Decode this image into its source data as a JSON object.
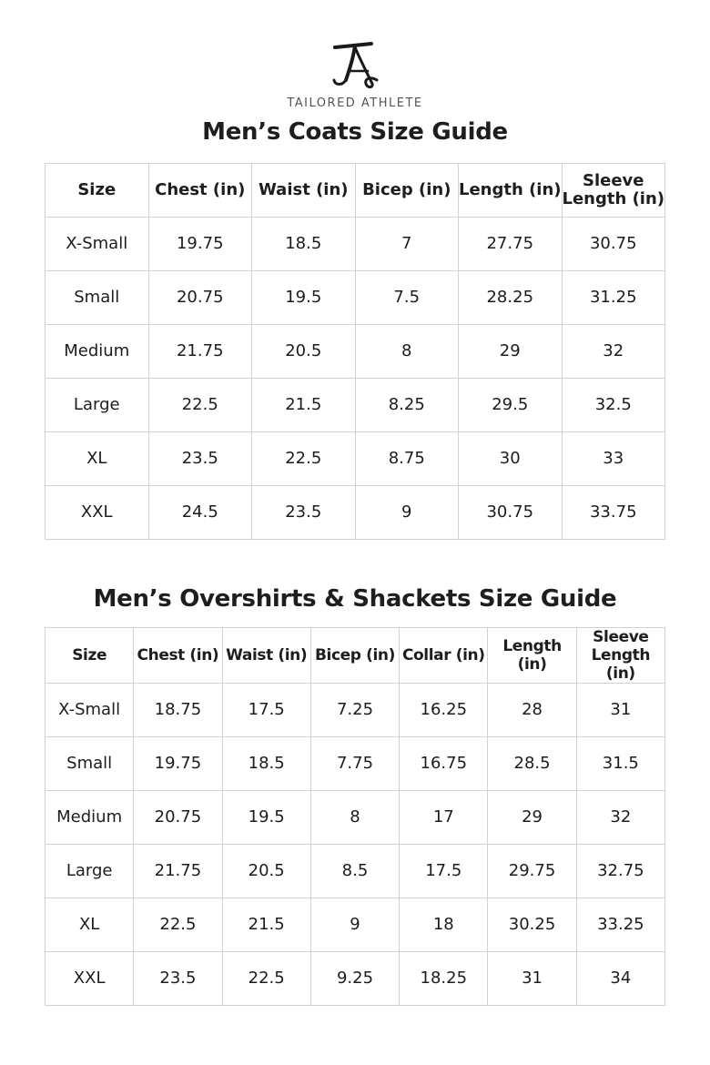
{
  "brand": {
    "name": "TAILORED ATHLETE"
  },
  "coats": {
    "title": "Men’s Coats Size Guide",
    "headers": [
      "Size",
      "Chest (in)",
      "Waist (in)",
      "Bicep (in)",
      "Length (in)",
      "Sleeve Length (in)"
    ],
    "rows": [
      [
        "X-Small",
        "19.75",
        "18.5",
        "7",
        "27.75",
        "30.75"
      ],
      [
        "Small",
        "20.75",
        "19.5",
        "7.5",
        "28.25",
        "31.25"
      ],
      [
        "Medium",
        "21.75",
        "20.5",
        "8",
        "29",
        "32"
      ],
      [
        "Large",
        "22.5",
        "21.5",
        "8.25",
        "29.5",
        "32.5"
      ],
      [
        "XL",
        "23.5",
        "22.5",
        "8.75",
        "30",
        "33"
      ],
      [
        "XXL",
        "24.5",
        "23.5",
        "9",
        "30.75",
        "33.75"
      ]
    ]
  },
  "overshirts": {
    "title": "Men’s Overshirts & Shackets Size Guide",
    "headers": [
      "Size",
      "Chest (in)",
      "Waist (in)",
      "Bicep (in)",
      "Collar (in)",
      "Length (in)",
      "Sleeve Length (in)"
    ],
    "rows": [
      [
        "X-Small",
        "18.75",
        "17.5",
        "7.25",
        "16.25",
        "28",
        "31"
      ],
      [
        "Small",
        "19.75",
        "18.5",
        "7.75",
        "16.75",
        "28.5",
        "31.5"
      ],
      [
        "Medium",
        "20.75",
        "19.5",
        "8",
        "17",
        "29",
        "32"
      ],
      [
        "Large",
        "21.75",
        "20.5",
        "8.5",
        "17.5",
        "29.75",
        "32.75"
      ],
      [
        "XL",
        "22.5",
        "21.5",
        "9",
        "18",
        "30.25",
        "33.25"
      ],
      [
        "XXL",
        "23.5",
        "22.5",
        "9.25",
        "18.25",
        "31",
        "34"
      ]
    ]
  }
}
